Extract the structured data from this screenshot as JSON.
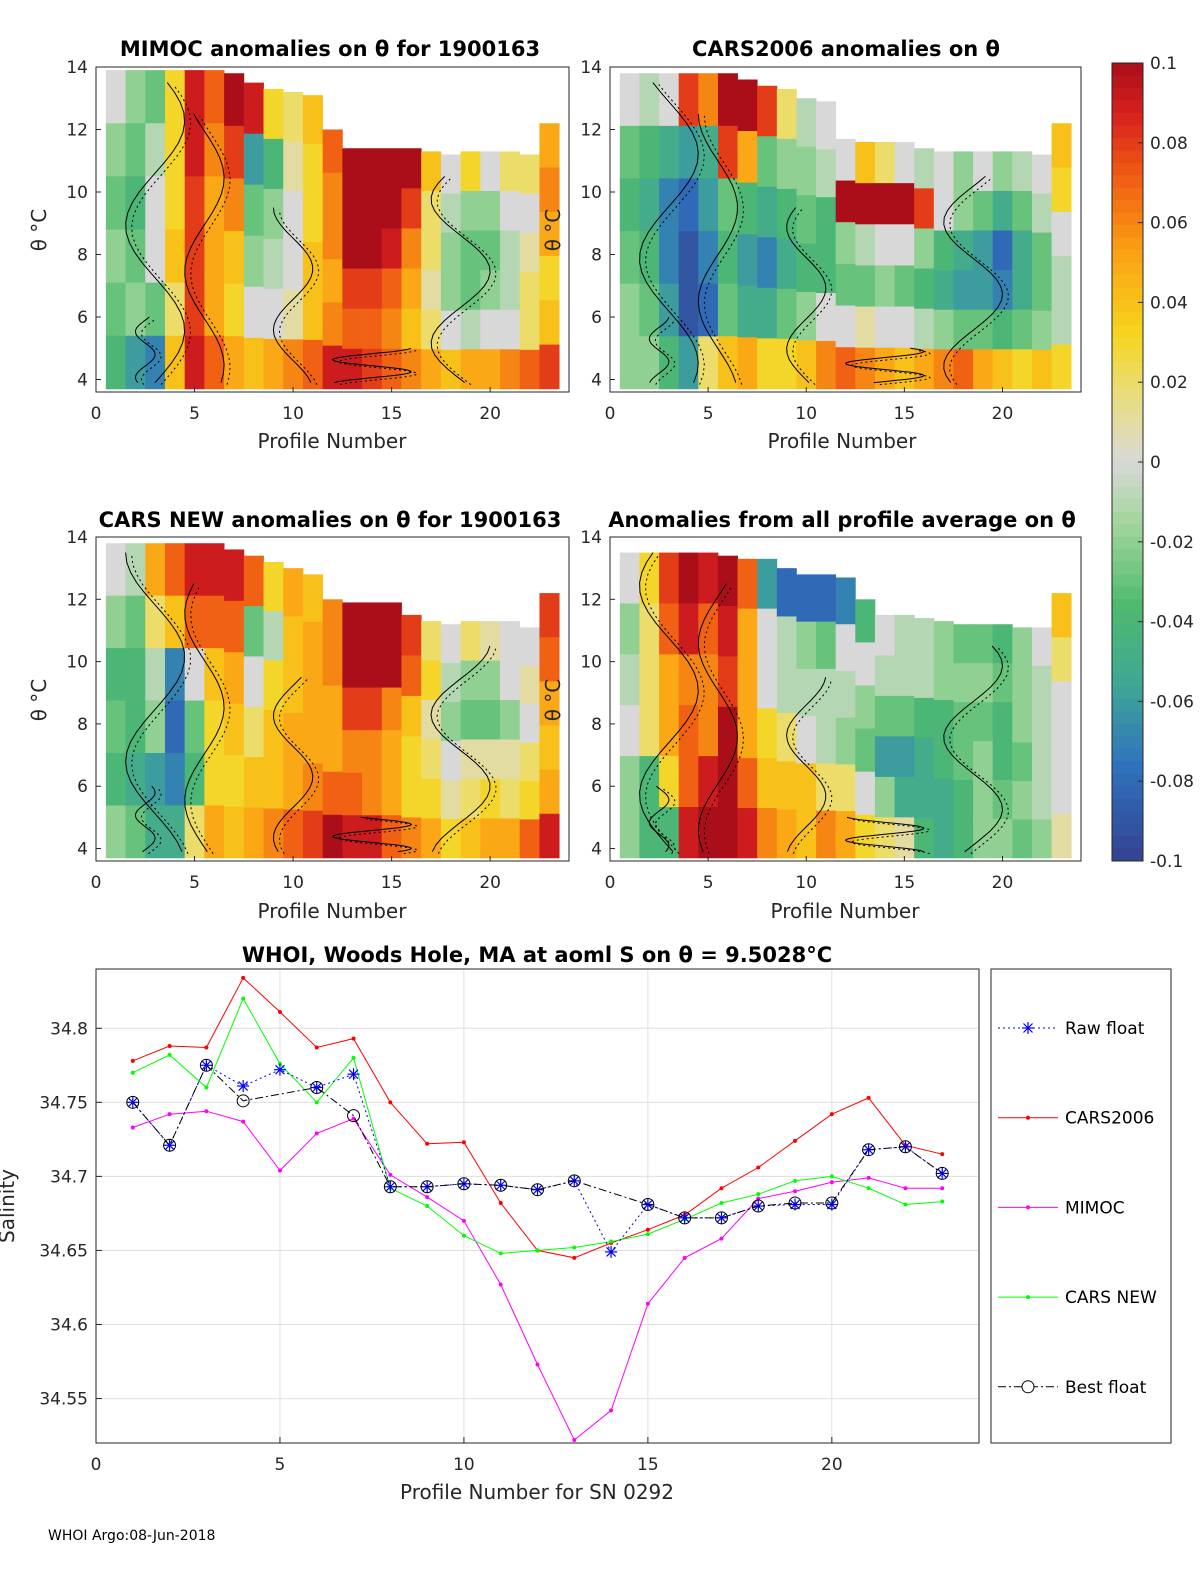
{
  "footer": "WHOI Argo:08-Jun-2018",
  "colors": {
    "raw_float": "#0000ff",
    "cars2006": "#ff0000",
    "mimoc": "#ff00ff",
    "cars_new": "#00ff00",
    "best_float": "#000000"
  },
  "colorbar": {
    "ticks": [
      "0.1",
      "0.08",
      "0.06",
      "0.04",
      "0.02",
      "0",
      "-0.02",
      "-0.04",
      "-0.06",
      "-0.08",
      "-0.1"
    ],
    "range": [
      -0.1,
      0.1
    ]
  },
  "chart_data": [
    {
      "type": "heatmap",
      "title": "MIMOC anomalies on θ  for 1900163",
      "xlabel": "Profile Number",
      "ylabel": "θ °C",
      "xlim": [
        0,
        24
      ],
      "ylim": [
        3.6,
        14
      ],
      "xticks": [
        "0",
        "5",
        "10",
        "15",
        "20"
      ],
      "yticks": [
        "4",
        "6",
        "8",
        "10",
        "12",
        "14"
      ],
      "values": [
        [
          0.0,
          -0.02,
          -0.03,
          0.03,
          0.09,
          0.07,
          0.1,
          0.09,
          0.03,
          0.02,
          0.04,
          0.07,
          0.1,
          0.1,
          0.1,
          0.1,
          0.04,
          0.0,
          0.03,
          0.0,
          0.02,
          0.02,
          0.05
        ],
        [
          -0.02,
          -0.03,
          -0.01,
          0.03,
          0.09,
          0.06,
          0.08,
          -0.06,
          -0.04,
          0.01,
          0.03,
          0.06,
          0.1,
          0.1,
          0.1,
          0.08,
          0.02,
          -0.01,
          -0.02,
          -0.02,
          0.0,
          0.0,
          0.06
        ],
        [
          -0.03,
          -0.04,
          0.0,
          0.03,
          0.08,
          0.05,
          0.06,
          -0.03,
          -0.02,
          0.0,
          0.03,
          0.06,
          0.1,
          0.1,
          0.09,
          0.06,
          0.02,
          -0.02,
          -0.03,
          -0.03,
          -0.01,
          0.01,
          0.05
        ],
        [
          -0.02,
          -0.03,
          0.0,
          0.04,
          0.08,
          0.05,
          0.04,
          -0.02,
          -0.01,
          0.0,
          0.04,
          0.05,
          0.08,
          0.08,
          0.07,
          0.05,
          0.01,
          -0.02,
          -0.03,
          -0.02,
          -0.01,
          0.02,
          0.03
        ],
        [
          -0.03,
          -0.02,
          -0.03,
          0.02,
          0.08,
          0.05,
          0.03,
          0.0,
          0.0,
          0.01,
          0.04,
          0.06,
          0.07,
          0.07,
          0.06,
          0.04,
          0.02,
          0.0,
          -0.01,
          0.0,
          0.0,
          0.02,
          0.04
        ],
        [
          -0.04,
          -0.06,
          -0.07,
          0.04,
          0.09,
          0.07,
          0.05,
          0.04,
          0.05,
          0.06,
          0.07,
          0.09,
          0.09,
          0.08,
          0.07,
          0.06,
          0.05,
          0.04,
          0.05,
          0.05,
          0.06,
          0.07,
          0.08
        ]
      ]
    },
    {
      "type": "heatmap",
      "title": "CARS2006 anomalies on θ",
      "xlabel": "Profile Number",
      "ylabel": "θ °C",
      "xlim": [
        0,
        24
      ],
      "ylim": [
        3.6,
        14
      ],
      "xticks": [
        "0",
        "5",
        "10",
        "15",
        "20"
      ],
      "yticks": [
        "4",
        "6",
        "8",
        "10",
        "12",
        "14"
      ],
      "values": [
        [
          0.0,
          -0.01,
          0.0,
          0.08,
          0.06,
          0.1,
          0.1,
          0.08,
          0.02,
          -0.01,
          0.0,
          0.0,
          0.04,
          0.02,
          0.0,
          -0.01,
          0.0,
          -0.02,
          0.0,
          -0.02,
          -0.01,
          0.0,
          0.04
        ],
        [
          -0.03,
          -0.04,
          -0.05,
          -0.06,
          -0.05,
          0.08,
          0.05,
          -0.03,
          -0.02,
          -0.02,
          -0.01,
          0.1,
          0.1,
          0.1,
          0.1,
          0.08,
          0.0,
          -0.02,
          -0.03,
          -0.05,
          -0.03,
          -0.01,
          0.03
        ],
        [
          -0.04,
          -0.05,
          -0.07,
          -0.08,
          -0.06,
          -0.03,
          -0.04,
          -0.05,
          -0.04,
          -0.03,
          -0.04,
          -0.02,
          -0.01,
          0.0,
          0.0,
          -0.02,
          -0.04,
          -0.05,
          -0.06,
          -0.08,
          -0.05,
          -0.03,
          0.0
        ],
        [
          -0.03,
          -0.04,
          -0.07,
          -0.09,
          -0.07,
          -0.04,
          -0.06,
          -0.07,
          -0.05,
          -0.04,
          -0.04,
          -0.03,
          -0.03,
          -0.02,
          -0.03,
          -0.04,
          -0.05,
          -0.06,
          -0.06,
          -0.07,
          -0.05,
          -0.03,
          -0.01
        ],
        [
          -0.02,
          -0.03,
          -0.06,
          -0.09,
          -0.08,
          -0.03,
          -0.05,
          -0.05,
          -0.03,
          -0.02,
          0.0,
          0.0,
          0.01,
          0.0,
          0.0,
          -0.01,
          -0.02,
          -0.03,
          -0.03,
          -0.04,
          -0.03,
          -0.02,
          -0.01
        ],
        [
          -0.02,
          -0.02,
          -0.04,
          -0.06,
          0.02,
          0.04,
          0.05,
          0.03,
          0.03,
          0.04,
          0.06,
          0.07,
          0.06,
          0.05,
          0.04,
          0.05,
          0.06,
          0.07,
          0.05,
          0.04,
          0.03,
          0.04,
          0.03
        ]
      ]
    },
    {
      "type": "heatmap",
      "title": "CARS NEW anomalies on θ for 1900163",
      "xlabel": "Profile Number",
      "ylabel": "θ °C",
      "xlim": [
        0,
        24
      ],
      "ylim": [
        3.6,
        14
      ],
      "xticks": [
        "0",
        "5",
        "10",
        "15",
        "20"
      ],
      "yticks": [
        "4",
        "6",
        "8",
        "10",
        "12",
        "14"
      ],
      "values": [
        [
          0.0,
          -0.01,
          0.05,
          0.07,
          0.09,
          0.09,
          0.09,
          0.07,
          0.03,
          0.05,
          0.04,
          0.06,
          0.1,
          0.1,
          0.1,
          0.08,
          0.02,
          0.0,
          0.02,
          0.01,
          0.0,
          0.0,
          0.08
        ],
        [
          -0.02,
          -0.03,
          0.02,
          0.04,
          0.07,
          0.07,
          0.07,
          -0.03,
          -0.01,
          0.04,
          0.05,
          0.06,
          0.1,
          0.1,
          0.1,
          0.07,
          0.03,
          -0.01,
          -0.02,
          -0.02,
          0.0,
          0.01,
          0.07
        ],
        [
          -0.04,
          -0.04,
          -0.01,
          -0.07,
          0.0,
          0.04,
          0.05,
          0.0,
          0.03,
          0.04,
          0.05,
          0.05,
          0.08,
          0.08,
          0.06,
          0.04,
          0.01,
          -0.02,
          -0.03,
          -0.03,
          -0.02,
          0.0,
          0.05
        ],
        [
          -0.03,
          -0.04,
          -0.02,
          -0.08,
          -0.03,
          0.03,
          0.04,
          0.02,
          0.04,
          0.05,
          0.05,
          0.05,
          0.06,
          0.06,
          0.05,
          0.03,
          0.02,
          0.0,
          0.01,
          0.01,
          0.01,
          0.02,
          0.04
        ],
        [
          -0.04,
          -0.05,
          -0.06,
          -0.07,
          -0.04,
          0.03,
          0.03,
          0.04,
          0.04,
          0.05,
          0.06,
          0.07,
          0.07,
          0.06,
          0.05,
          0.03,
          0.03,
          0.01,
          0.02,
          0.03,
          0.02,
          0.03,
          0.05
        ],
        [
          -0.02,
          -0.03,
          -0.05,
          -0.05,
          0.02,
          0.05,
          0.04,
          0.05,
          0.06,
          0.07,
          0.08,
          0.1,
          0.09,
          0.09,
          0.07,
          0.06,
          0.05,
          0.03,
          0.04,
          0.05,
          0.05,
          0.07,
          0.09
        ]
      ]
    },
    {
      "type": "heatmap",
      "title": "Anomalies from all profile average on θ",
      "xlabel": "Profile Number",
      "ylabel": "θ °C",
      "xlim": [
        0,
        24
      ],
      "ylim": [
        3.6,
        14
      ],
      "xticks": [
        "0",
        "5",
        "10",
        "15",
        "20"
      ],
      "yticks": [
        "4",
        "6",
        "8",
        "10",
        "12",
        "14"
      ],
      "values": [
        [
          0.0,
          0.03,
          0.08,
          0.1,
          0.09,
          0.1,
          0.07,
          -0.06,
          -0.08,
          -0.08,
          -0.08,
          -0.07,
          -0.04,
          0.0,
          -0.01,
          -0.01,
          -0.02,
          -0.03,
          -0.03,
          -0.04,
          -0.02,
          0.0,
          0.04
        ],
        [
          -0.02,
          0.02,
          0.07,
          0.09,
          0.07,
          0.09,
          0.05,
          0.0,
          -0.01,
          -0.02,
          -0.03,
          0.0,
          0.0,
          -0.01,
          -0.01,
          -0.01,
          -0.02,
          -0.02,
          -0.02,
          -0.03,
          -0.02,
          -0.01,
          0.02
        ],
        [
          -0.01,
          0.02,
          0.05,
          0.06,
          0.06,
          0.08,
          0.05,
          0.0,
          -0.01,
          -0.01,
          -0.01,
          -0.01,
          -0.02,
          -0.03,
          -0.03,
          -0.04,
          -0.04,
          -0.03,
          -0.03,
          -0.04,
          -0.02,
          -0.01,
          0.0
        ],
        [
          0.0,
          0.02,
          0.05,
          0.07,
          0.06,
          0.1,
          0.05,
          0.03,
          0.02,
          0.0,
          -0.01,
          -0.02,
          -0.03,
          -0.06,
          -0.06,
          -0.05,
          -0.04,
          -0.03,
          -0.02,
          -0.04,
          -0.03,
          -0.01,
          0.0
        ],
        [
          -0.02,
          -0.04,
          0.03,
          0.07,
          0.09,
          0.1,
          0.07,
          0.04,
          0.04,
          0.04,
          0.02,
          0.02,
          0.0,
          -0.02,
          -0.05,
          -0.05,
          -0.05,
          -0.04,
          -0.02,
          -0.03,
          -0.02,
          -0.01,
          0.0
        ],
        [
          -0.02,
          -0.04,
          -0.04,
          0.09,
          0.1,
          0.1,
          0.09,
          0.06,
          0.05,
          0.04,
          0.06,
          0.05,
          0.03,
          0.02,
          0.01,
          -0.04,
          -0.05,
          -0.04,
          -0.02,
          -0.02,
          -0.03,
          -0.02,
          0.01
        ]
      ]
    },
    {
      "type": "line",
      "title": "WHOI, Woods Hole, MA at aoml S on θ = 9.5028°C",
      "xlabel": "Profile Number for SN 0292",
      "ylabel": "Salinity",
      "xlim": [
        0,
        24
      ],
      "ylim": [
        34.52,
        34.84
      ],
      "xticks": [
        "0",
        "5",
        "10",
        "15",
        "20"
      ],
      "yticks": [
        "34.55",
        "34.6",
        "34.65",
        "34.7",
        "34.75",
        "34.8"
      ],
      "x": [
        1,
        2,
        3,
        4,
        5,
        6,
        7,
        8,
        9,
        10,
        11,
        12,
        13,
        14,
        15,
        16,
        17,
        18,
        19,
        20,
        21,
        22,
        23
      ],
      "series": [
        {
          "name": "Raw float",
          "style": "dotted-star",
          "values": [
            34.75,
            34.721,
            34.775,
            34.761,
            34.772,
            34.76,
            34.769,
            34.693,
            34.693,
            34.695,
            34.694,
            34.691,
            34.697,
            34.649,
            34.681,
            34.672,
            34.672,
            34.68,
            34.681,
            34.681,
            34.718,
            34.72,
            34.702
          ]
        },
        {
          "name": "CARS2006",
          "style": "solid-dot",
          "values": [
            34.778,
            34.788,
            34.787,
            34.834,
            34.811,
            34.787,
            34.793,
            34.75,
            34.722,
            34.723,
            34.682,
            34.65,
            34.645,
            34.655,
            34.664,
            34.674,
            34.692,
            34.706,
            34.724,
            34.742,
            34.753,
            34.721,
            34.715
          ]
        },
        {
          "name": "MIMOC",
          "style": "solid-dot",
          "values": [
            34.733,
            34.742,
            34.744,
            34.737,
            34.704,
            34.729,
            34.739,
            34.701,
            34.686,
            34.67,
            34.627,
            34.573,
            34.522,
            34.542,
            34.614,
            34.645,
            34.658,
            34.685,
            34.69,
            34.696,
            34.699,
            34.692,
            34.692
          ]
        },
        {
          "name": "CARS NEW",
          "style": "solid-dot",
          "values": [
            34.77,
            34.782,
            34.76,
            34.82,
            34.776,
            34.75,
            34.78,
            34.692,
            34.68,
            34.66,
            34.648,
            34.65,
            34.652,
            34.656,
            34.661,
            34.671,
            34.682,
            34.688,
            34.697,
            34.7,
            34.692,
            34.681,
            34.683
          ]
        },
        {
          "name": "Best float",
          "style": "dashdot-circle",
          "values": [
            34.75,
            34.721,
            34.775,
            34.751,
            null,
            34.76,
            34.741,
            34.693,
            34.693,
            34.695,
            34.694,
            34.691,
            34.697,
            null,
            34.681,
            34.672,
            34.672,
            34.68,
            34.682,
            34.682,
            34.718,
            34.72,
            34.702
          ]
        }
      ]
    }
  ]
}
